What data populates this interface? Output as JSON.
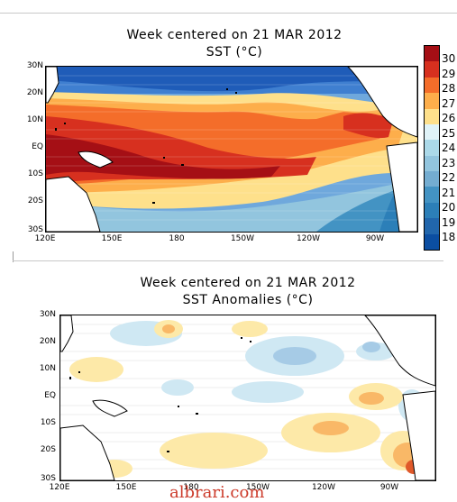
{
  "panel1": {
    "title_line1": "Week centered on 21 MAR 2012",
    "title_line2": "SST (°C)"
  },
  "panel2": {
    "title_line1": "Week centered on 21 MAR 2012",
    "title_line2": "SST Anomalies (°C)"
  },
  "lat_labels": [
    "30N",
    "20N",
    "10N",
    "EQ",
    "10S",
    "20S",
    "30S"
  ],
  "lon_labels": [
    "120E",
    "150E",
    "180",
    "150W",
    "120W",
    "90W"
  ],
  "colorbar": {
    "labels": [
      "30",
      "29",
      "28",
      "27",
      "26",
      "25",
      "24",
      "23",
      "22",
      "21",
      "20",
      "19",
      "18"
    ],
    "colors": [
      "#a50f15",
      "#d7301f",
      "#f46d2a",
      "#fdae4b",
      "#fee08b",
      "#e0f3f8",
      "#abd9e9",
      "#92c5de",
      "#74add1",
      "#4393c3",
      "#2c7fb8",
      "#2166ac",
      "#0b4ea2"
    ]
  },
  "watermark": "albrari.com"
}
